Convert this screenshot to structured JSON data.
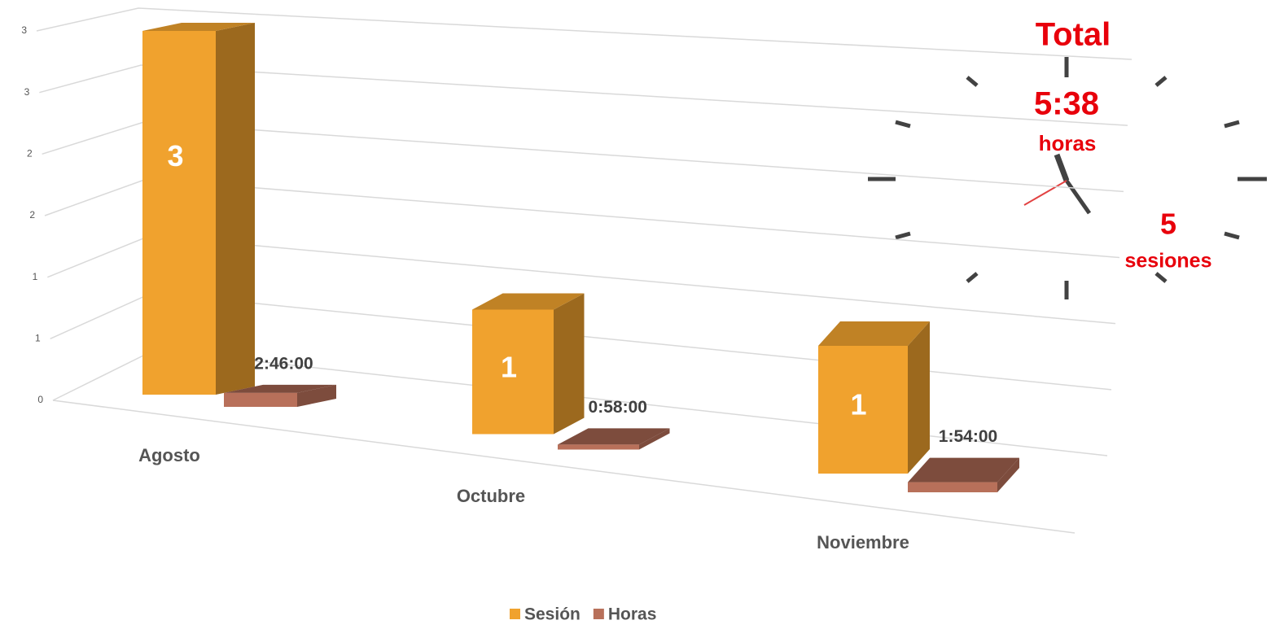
{
  "chart_data": {
    "type": "bar3d",
    "categories": [
      "Agosto",
      "Octubre",
      "Noviembre"
    ],
    "series": [
      {
        "name": "Sesión",
        "color": "#f0a22e",
        "values": [
          3,
          1,
          1
        ]
      },
      {
        "name": "Horas",
        "color": "#b8705a",
        "values": [
          0.1153,
          0.0403,
          0.0792
        ],
        "value_labels": [
          "2:46:00",
          "0:58:00",
          "1:54:00"
        ]
      }
    ],
    "ylim": [
      0,
      3
    ],
    "yticks": [
      0,
      {
        "value": 0.5,
        "label": "1"
      },
      1,
      {
        "value": 1.5,
        "label": "2"
      },
      2,
      {
        "value": 2.5,
        "label": "3"
      },
      3
    ],
    "grid": true,
    "legend": "bottom",
    "annotation": {
      "title": "Total",
      "hours": "5:38",
      "hours_unit": "horas",
      "sessions": "5",
      "sessions_unit": "sesiones"
    }
  }
}
